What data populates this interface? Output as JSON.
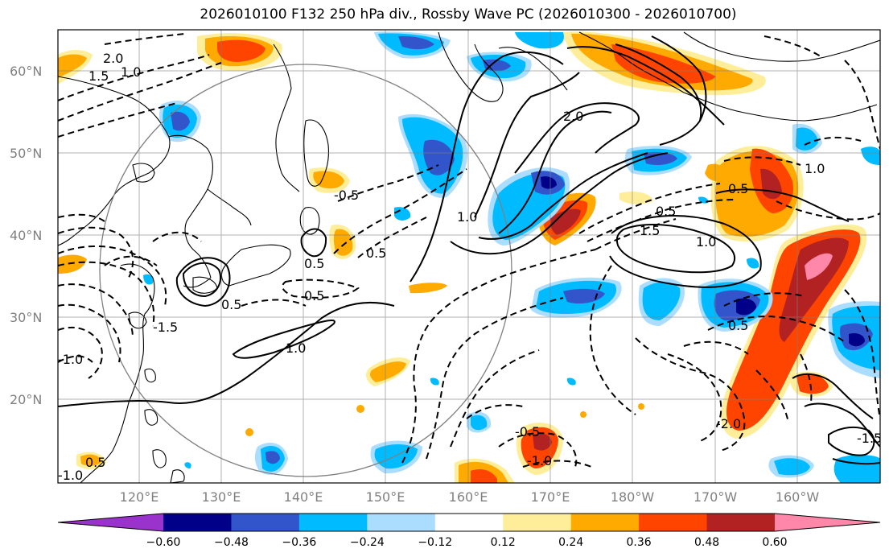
{
  "title": "2026010100 F132 250 hPa div., Rossby Wave PC (2026010300 - 2026010700)",
  "axes": {
    "lat_ticks": [
      "60°N",
      "50°N",
      "40°N",
      "30°N",
      "20°N"
    ],
    "lon_ticks": [
      "120°E",
      "130°E",
      "140°E",
      "150°E",
      "160°E",
      "170°E",
      "180°W",
      "170°W",
      "160°W"
    ]
  },
  "colorbar": {
    "colors": [
      "#9933cc",
      "#000088",
      "#3355cc",
      "#00bbff",
      "#aaddff",
      "#ffffff",
      "#ffee99",
      "#ffaa00",
      "#ff4400",
      "#b22222",
      "#ff88aa"
    ],
    "labels": [
      "−0.60",
      "−0.48",
      "−0.36",
      "−0.24",
      "−0.12",
      "0.12",
      "0.24",
      "0.36",
      "0.48",
      "0.60"
    ]
  },
  "contour_labels": [
    "2.0",
    "1.5",
    "1.0",
    "0.5",
    "-0.5",
    "-1.0",
    "-1.5",
    "-2.0"
  ],
  "map_features": {
    "projection_circle": true,
    "gridlines": true
  }
}
